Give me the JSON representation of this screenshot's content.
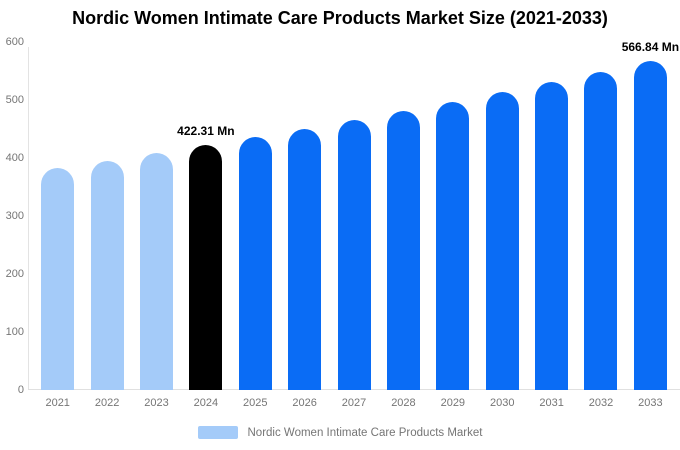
{
  "title": "Nordic Women Intimate Care Products Market Size (2021-2033)",
  "legend": {
    "label": "Nordic Women Intimate Care Products Market",
    "swatch_color": "#a4cbf9"
  },
  "colors": {
    "historical_bar": "#a4cbf9",
    "highlight_bar": "#000000",
    "forecast_bar": "#0a6cf5",
    "axis_line": "#e0e0e0",
    "tick_text": "#757575",
    "title_text": "#000000"
  },
  "chart_data": {
    "type": "bar",
    "title": "Nordic Women Intimate Care Products Market Size (2021-2033)",
    "unit": "Mn",
    "categories": [
      "2021",
      "2022",
      "2023",
      "2024",
      "2025",
      "2026",
      "2027",
      "2028",
      "2029",
      "2030",
      "2031",
      "2032",
      "2033"
    ],
    "series": [
      {
        "name": "Nordic Women Intimate Care Products Market",
        "values": [
          382.84,
          395.57,
          408.72,
          422.31,
          436.35,
          450.86,
          465.85,
          481.33,
          497.33,
          513.86,
          530.94,
          548.59,
          566.84
        ]
      }
    ],
    "labeled_points": [
      {
        "category": "2024",
        "label": "422.31 Mn"
      },
      {
        "category": "2033",
        "label": "566.84 Mn"
      }
    ],
    "bar_colors": [
      "#a4cbf9",
      "#a4cbf9",
      "#a4cbf9",
      "#000000",
      "#0a6cf5",
      "#0a6cf5",
      "#0a6cf5",
      "#0a6cf5",
      "#0a6cf5",
      "#0a6cf5",
      "#0a6cf5",
      "#0a6cf5",
      "#0a6cf5"
    ],
    "xlabel": "",
    "ylabel": "",
    "ylim": [
      0,
      600
    ],
    "y_ticks": [
      0,
      100,
      200,
      300,
      400,
      500,
      600
    ],
    "grid": false,
    "legend_position": "bottom"
  }
}
